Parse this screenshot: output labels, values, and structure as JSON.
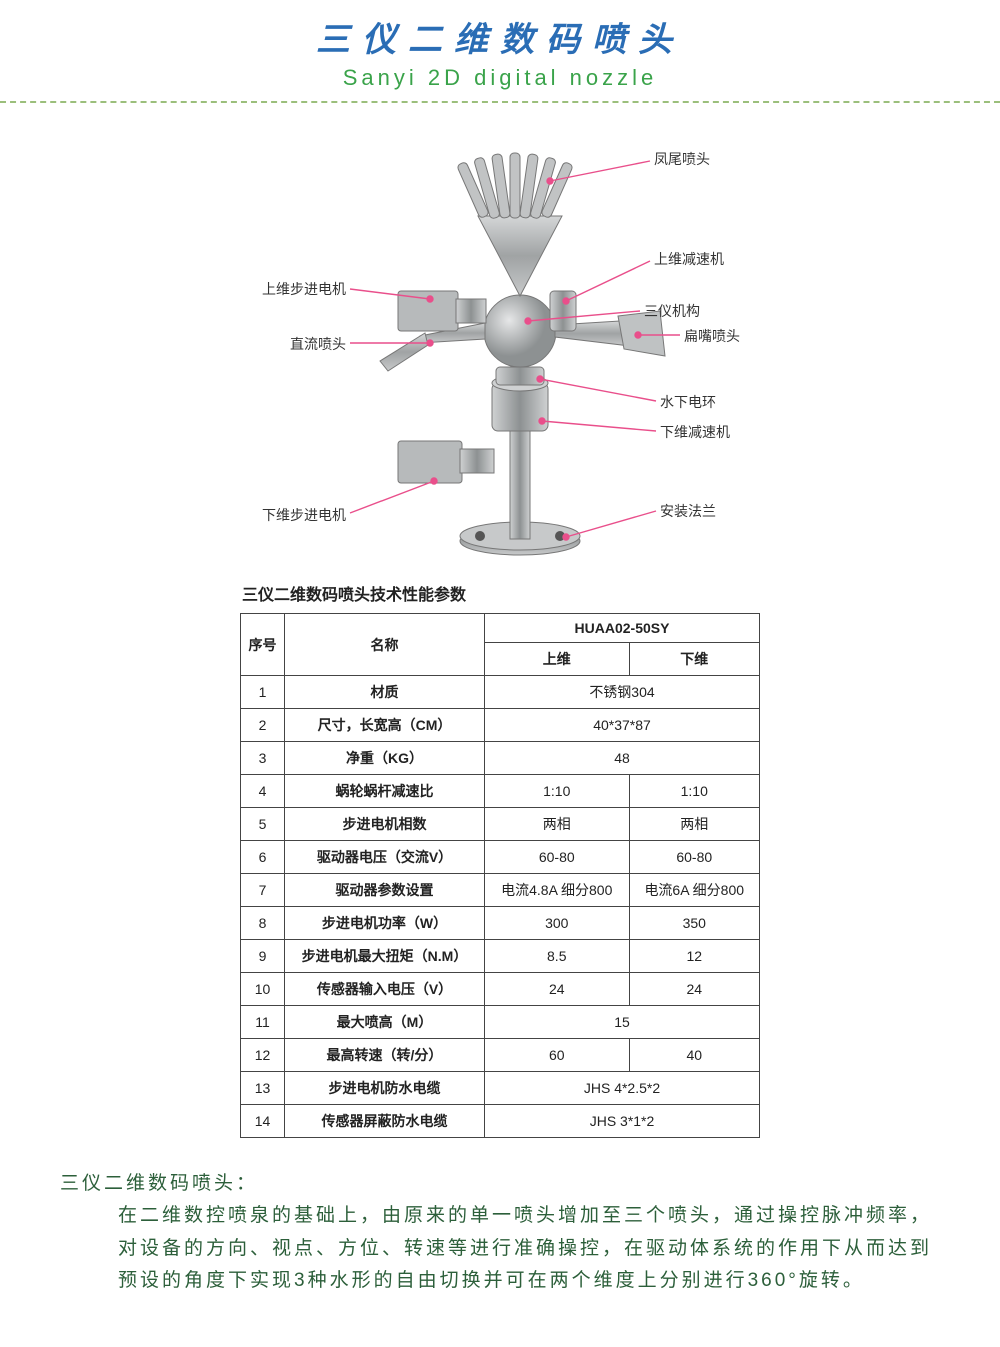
{
  "header": {
    "title_cn": "三仪二维数码喷头",
    "title_en": "Sanyi 2D digital nozzle",
    "title_cn_color": "#2a6db5",
    "title_en_color": "#3aa34a",
    "dash_color": "#9bbf7b"
  },
  "diagram": {
    "labels": {
      "fengwei": "凤尾喷头",
      "upper_reducer": "上维减速机",
      "upper_stepper": "上维步进电机",
      "sanyi_mech": "三仪机构",
      "dc_nozzle": "直流喷头",
      "flat_nozzle": "扁嘴喷头",
      "water_ring": "水下电环",
      "lower_reducer": "下维减速机",
      "lower_stepper": "下维步进电机",
      "flange": "安装法兰"
    },
    "leader_color": "#e94f8b",
    "steel_color": "#b7babb",
    "steel_dark": "#8d9192"
  },
  "spec": {
    "title": "三仪二维数码喷头技术性能参数",
    "col_seq": "序号",
    "col_name": "名称",
    "col_model": "HUAA02-50SY",
    "col_upper": "上维",
    "col_lower": "下维",
    "rows": [
      {
        "n": "1",
        "name": "材质",
        "merged": "不锈钢304"
      },
      {
        "n": "2",
        "name": "尺寸，长宽高（CM）",
        "merged": "40*37*87"
      },
      {
        "n": "3",
        "name": "净重（KG）",
        "merged": "48"
      },
      {
        "n": "4",
        "name": "蜗轮蜗杆减速比",
        "u": "1:10",
        "l": "1:10"
      },
      {
        "n": "5",
        "name": "步进电机相数",
        "u": "两相",
        "l": "两相"
      },
      {
        "n": "6",
        "name": "驱动器电压（交流V）",
        "u": "60-80",
        "l": "60-80"
      },
      {
        "n": "7",
        "name": "驱动器参数设置",
        "u": "电流4.8A 细分800",
        "l": "电流6A 细分800"
      },
      {
        "n": "8",
        "name": "步进电机功率（W）",
        "u": "300",
        "l": "350"
      },
      {
        "n": "9",
        "name": "步进电机最大扭矩（N.M）",
        "u": "8.5",
        "l": "12"
      },
      {
        "n": "10",
        "name": "传感器输入电压（V）",
        "u": "24",
        "l": "24"
      },
      {
        "n": "11",
        "name": "最大喷高（M）",
        "merged": "15"
      },
      {
        "n": "12",
        "name": "最高转速（转/分）",
        "u": "60",
        "l": "40"
      },
      {
        "n": "13",
        "name": "步进电机防水电缆",
        "merged": "JHS 4*2.5*2"
      },
      {
        "n": "14",
        "name": "传感器屏蔽防水电缆",
        "merged": "JHS 3*1*2"
      }
    ]
  },
  "description": {
    "head": "三仪二维数码喷头：",
    "body": "在二维数控喷泉的基础上，由原来的单一喷头增加至三个喷头，通过操控脉冲频率，对设备的方向、视点、方位、转速等进行准确操控，在驱动体系统的作用下从而达到预设的角度下实现3种水形的自由切换并可在两个维度上分别进行360°旋转。",
    "color": "#2c5f3a"
  }
}
